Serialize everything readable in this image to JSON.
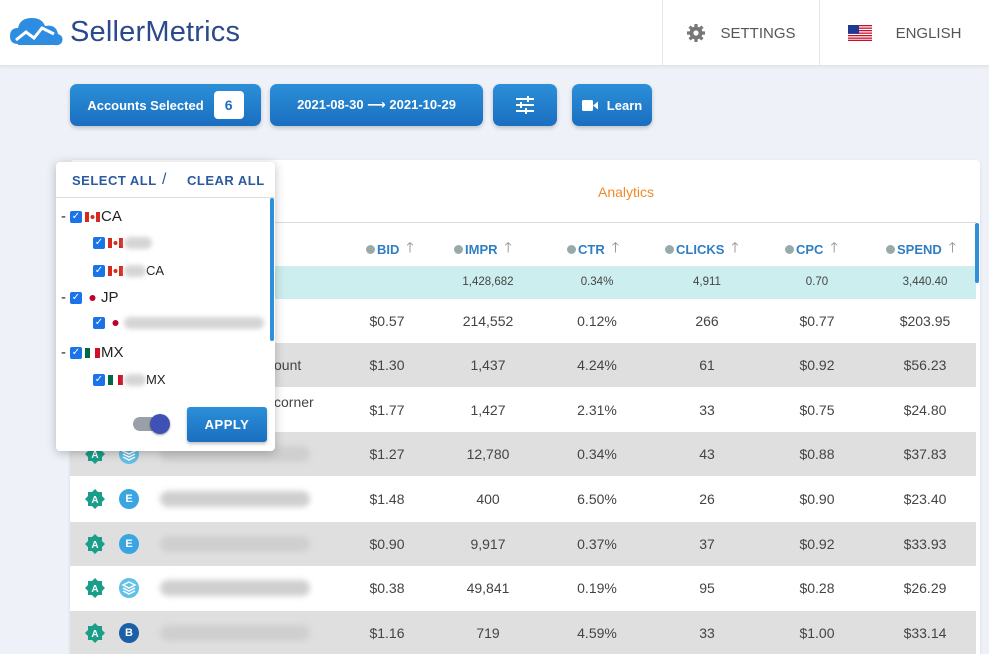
{
  "brand": {
    "name": "SellerMetrics"
  },
  "header": {
    "settings_label": "SETTINGS",
    "language_label": "ENGLISH"
  },
  "toolbar": {
    "accounts_label": "Accounts Selected",
    "accounts_count": "6",
    "date_range": "2021-08-30 ⟶ 2021-10-29",
    "learn_label": "Learn"
  },
  "table": {
    "tab_label": "Analytics",
    "columns": [
      "BID",
      "IMPR",
      "CTR",
      "CLICKS",
      "CPC",
      "SPEND"
    ],
    "totals": [
      "",
      "1,428,682",
      "0.34%",
      "4,911",
      "0.70",
      "3,440.40"
    ],
    "rows": [
      {
        "fragment": "",
        "type": "",
        "cells": [
          "$0.57",
          "214,552",
          "0.12%",
          "266",
          "$0.77",
          "$203.95"
        ]
      },
      {
        "fragment": "ount",
        "type": "",
        "cells": [
          "$1.30",
          "1,437",
          "4.24%",
          "61",
          "$0.92",
          "$56.23"
        ]
      },
      {
        "fragment": "corner",
        "type": "",
        "cells": [
          "$1.77",
          "1,427",
          "2.31%",
          "33",
          "$0.75",
          "$24.80"
        ]
      },
      {
        "fragment": "",
        "type": "stack",
        "cells": [
          "$1.27",
          "12,780",
          "0.34%",
          "43",
          "$0.88",
          "$37.83"
        ]
      },
      {
        "fragment": "",
        "type": "E",
        "cells": [
          "$1.48",
          "400",
          "6.50%",
          "26",
          "$0.90",
          "$23.40"
        ]
      },
      {
        "fragment": "",
        "type": "E",
        "cells": [
          "$0.90",
          "9,917",
          "0.37%",
          "37",
          "$0.92",
          "$33.93"
        ]
      },
      {
        "fragment": "",
        "type": "stack",
        "cells": [
          "$0.38",
          "49,841",
          "0.19%",
          "95",
          "$0.28",
          "$26.29"
        ]
      },
      {
        "fragment": "",
        "type": "B",
        "cells": [
          "$1.16",
          "719",
          "4.59%",
          "33",
          "$1.00",
          "$33.14"
        ]
      }
    ]
  },
  "dropdown": {
    "select_all": "SELECT ALL",
    "separator": "/",
    "clear_all": "CLEAR ALL",
    "groups": [
      {
        "label": "CA",
        "dash": "-",
        "items": [
          "",
          "CA"
        ]
      },
      {
        "label": "JP",
        "dash": "-",
        "items": [
          ""
        ]
      },
      {
        "label": "MX",
        "dash": "-",
        "items": [
          "MX"
        ]
      }
    ],
    "apply_label": "APPLY"
  },
  "badge_letter": "A",
  "colors": {
    "accent": "#1a6fc0",
    "analytics_tab": "#f08a28",
    "header_text": "#2f7ec4",
    "totals_row": "#cdeeee",
    "badge_green": "#1a9e8a"
  }
}
